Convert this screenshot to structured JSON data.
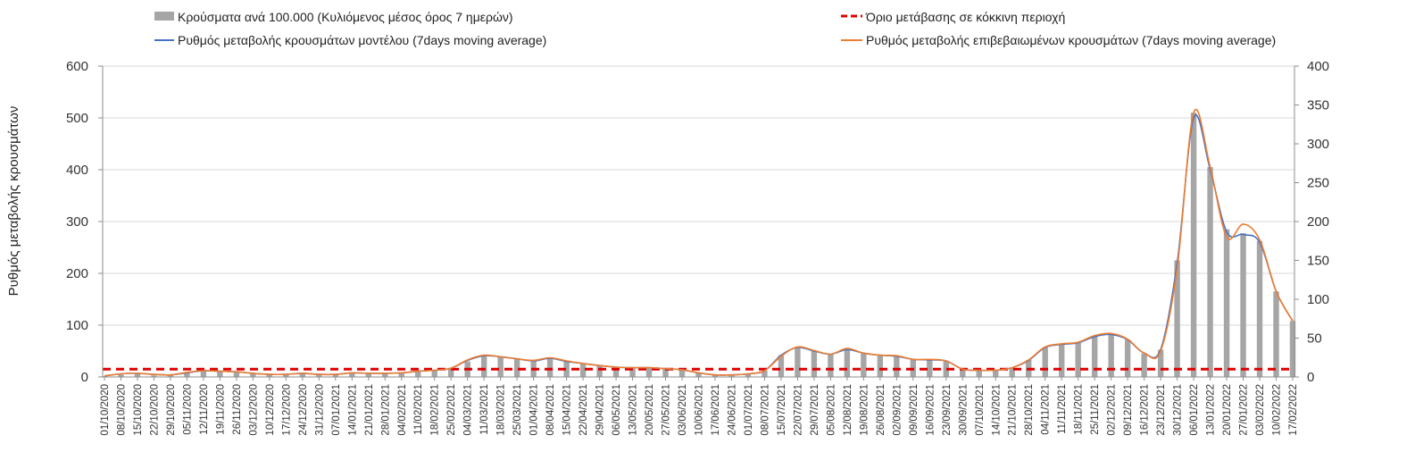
{
  "chart_data": {
    "type": "bar+line",
    "title": "",
    "ylabel": "Ρυθμός μεταβολής κρουσμάτων",
    "ylim_left": [
      0,
      600
    ],
    "yticks_left": [
      0,
      100,
      200,
      300,
      400,
      500,
      600
    ],
    "ylim_right": [
      0,
      400
    ],
    "yticks_right": [
      0,
      50,
      100,
      150,
      200,
      250,
      300,
      350,
      400
    ],
    "grid": "horizontal",
    "legend_position": "top",
    "legend": [
      {
        "label": "Κρούσματα ανά 100.000 (Κυλιόμενος μέσος όρος 7 ημερών)",
        "kind": "bar",
        "color": "#a6a6a6"
      },
      {
        "label": "Όριο μετάβασης σε κόκκινη περιοχή",
        "kind": "dashed",
        "color": "#e00000"
      },
      {
        "label": "Ρυθμός μεταβολής κρουσμάτων μοντέλου (7days moving average)",
        "kind": "line",
        "color": "#4472c4"
      },
      {
        "label": "Ρυθμός μεταβολής επιβεβαιωμένων κρουσμάτων (7days moving average)",
        "kind": "line",
        "color": "#ed7d31"
      }
    ],
    "colors": {
      "bars": "#a6a6a6",
      "threshold": "#e00000",
      "model": "#4472c4",
      "confirmed": "#ed7d31",
      "grid": "#d9d9d9",
      "axis": "#8c8c8c"
    },
    "x_tick_labels": [
      "01/10/2020",
      "08/10/2020",
      "15/10/2020",
      "22/10/2020",
      "29/10/2020",
      "05/11/2020",
      "12/11/2020",
      "19/11/2020",
      "26/11/2020",
      "03/12/2020",
      "10/12/2020",
      "17/12/2020",
      "24/12/2020",
      "31/12/2020",
      "07/01/2021",
      "14/01/2021",
      "21/01/2021",
      "28/01/2021",
      "04/02/2021",
      "11/02/2021",
      "18/02/2021",
      "25/02/2021",
      "04/03/2021",
      "11/03/2021",
      "18/03/2021",
      "25/03/2021",
      "01/04/2021",
      "08/04/2021",
      "15/04/2021",
      "22/04/2021",
      "29/04/2021",
      "06/05/2021",
      "13/05/2021",
      "20/05/2021",
      "27/05/2021",
      "03/06/2021",
      "10/06/2021",
      "17/06/2021",
      "24/06/2021",
      "01/07/2021",
      "08/07/2021",
      "15/07/2021",
      "22/07/2021",
      "29/07/2021",
      "05/08/2021",
      "12/08/2021",
      "19/08/2021",
      "26/08/2021",
      "02/09/2021",
      "09/09/2021",
      "16/09/2021",
      "23/09/2021",
      "30/09/2021",
      "07/10/2021",
      "14/10/2021",
      "21/10/2021",
      "28/10/2021",
      "04/11/2021",
      "11/11/2021",
      "18/11/2021",
      "25/11/2021",
      "02/12/2021",
      "09/12/2021",
      "16/12/2021",
      "23/12/2021",
      "30/12/2021",
      "06/01/2022",
      "13/01/2022",
      "20/01/2022",
      "27/01/2022",
      "03/02/2022",
      "10/02/2022",
      "17/02/2022"
    ],
    "threshold_value_left": 15,
    "weekly_cases_per_100k_right_axis": [
      1,
      3,
      4,
      2,
      2,
      5,
      8,
      7,
      6,
      4,
      3,
      3,
      4,
      3,
      3,
      5,
      4,
      4,
      5,
      7,
      8,
      11,
      20,
      27,
      26,
      23,
      20,
      24,
      20,
      17,
      14,
      12,
      11,
      12,
      10,
      9,
      5,
      3,
      3,
      4,
      8,
      28,
      38,
      34,
      29,
      35,
      30,
      27,
      26,
      22,
      22,
      20,
      10,
      9,
      9,
      12,
      22,
      38,
      42,
      44,
      52,
      55,
      48,
      30,
      35,
      150,
      340,
      270,
      190,
      185,
      175,
      110,
      72
    ],
    "model_rate_left_axis": [
      2,
      6,
      7,
      5,
      4,
      8,
      12,
      11,
      10,
      7,
      5,
      5,
      7,
      5,
      5,
      8,
      7,
      7,
      8,
      11,
      13,
      17,
      32,
      41,
      39,
      35,
      31,
      36,
      30,
      26,
      22,
      19,
      18,
      18,
      16,
      14,
      8,
      4,
      4,
      6,
      12,
      42,
      57,
      50,
      44,
      53,
      46,
      42,
      40,
      34,
      33,
      31,
      15,
      13,
      13,
      18,
      32,
      57,
      63,
      66,
      78,
      82,
      72,
      46,
      53,
      220,
      500,
      400,
      280,
      275,
      260,
      165,
      108
    ],
    "confirmed_rate_left_axis": [
      2,
      6,
      7,
      5,
      4,
      9,
      12,
      11,
      10,
      7,
      5,
      5,
      7,
      5,
      5,
      8,
      7,
      7,
      8,
      11,
      13,
      17,
      33,
      42,
      39,
      35,
      32,
      37,
      31,
      26,
      22,
      19,
      18,
      18,
      16,
      14,
      8,
      4,
      4,
      6,
      12,
      40,
      58,
      51,
      44,
      55,
      46,
      42,
      41,
      34,
      34,
      31,
      15,
      13,
      13,
      18,
      33,
      58,
      64,
      67,
      80,
      84,
      73,
      46,
      50,
      210,
      510,
      405,
      270,
      295,
      265,
      165,
      108
    ]
  }
}
